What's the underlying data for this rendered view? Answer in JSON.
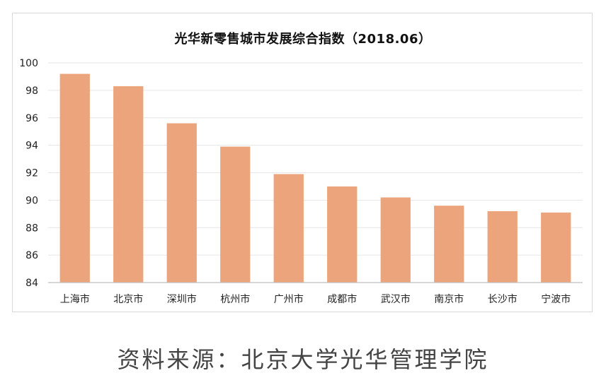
{
  "chart_data": {
    "type": "bar",
    "title": "光华新零售城市发展综合指数（2018.06）",
    "categories": [
      "上海市",
      "北京市",
      "深圳市",
      "杭州市",
      "广州市",
      "成都市",
      "武汉市",
      "南京市",
      "长沙市",
      "宁波市"
    ],
    "values": [
      99.2,
      98.3,
      95.6,
      93.9,
      91.9,
      91.0,
      90.2,
      89.6,
      89.2,
      89.1
    ],
    "ylim": [
      84,
      100
    ],
    "yticks": [
      84,
      86,
      88,
      90,
      92,
      94,
      96,
      98,
      100
    ],
    "xlabel": "",
    "ylabel": "",
    "grid": true,
    "legend": "none",
    "bar_color": "#eba47b",
    "grid_color": "#e6e6e6",
    "axis_color": "#bfbfbf"
  },
  "source_text": "资料来源：北京大学光华管理学院"
}
